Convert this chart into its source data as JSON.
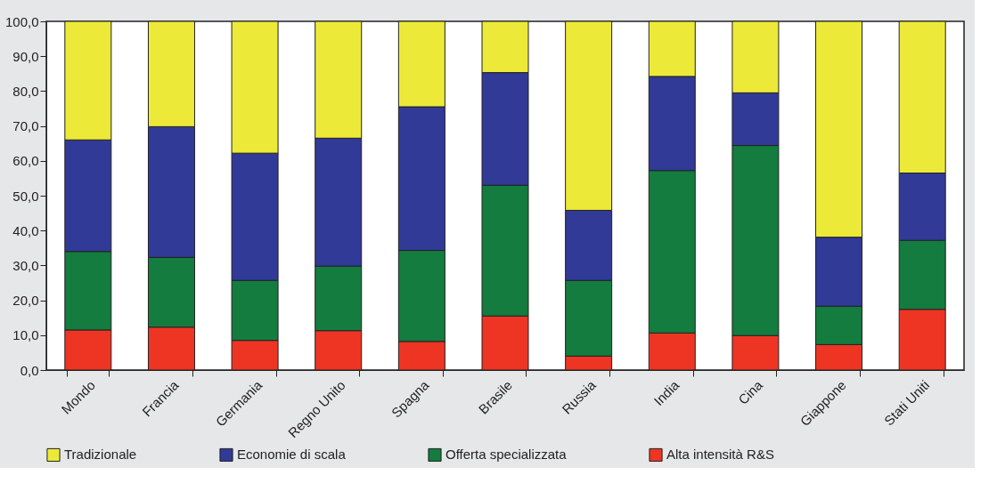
{
  "chart_data": {
    "type": "bar",
    "stacked": true,
    "categories": [
      "Mondo",
      "Francia",
      "Germania",
      "Regno Unito",
      "Spagna",
      "Brasile",
      "Russia",
      "India",
      "Cina",
      "Giappone",
      "Stati Uniti"
    ],
    "series": [
      {
        "name": "Alta intensità R&S",
        "color": "#ee3524",
        "values": [
          11.5,
          12.3,
          8.5,
          11.3,
          8.2,
          15.5,
          4.0,
          10.6,
          9.9,
          7.3,
          17.4
        ]
      },
      {
        "name": "Offerta specializzata",
        "color": "#137c3e",
        "values": [
          22.5,
          20.0,
          17.2,
          18.5,
          26.1,
          37.5,
          21.7,
          46.6,
          54.5,
          11.0,
          19.8
        ]
      },
      {
        "name": "Economie di scala",
        "color": "#313a96",
        "values": [
          32.0,
          37.5,
          36.5,
          36.7,
          41.2,
          32.3,
          20.1,
          27.0,
          15.1,
          19.8,
          19.3
        ]
      },
      {
        "name": "Tradizionale",
        "color": "#ede939",
        "values": [
          34.0,
          30.2,
          37.8,
          33.5,
          24.5,
          14.7,
          54.2,
          15.8,
          20.5,
          61.9,
          43.5
        ]
      }
    ],
    "ylim": [
      0,
      100
    ],
    "yticks": [
      {
        "value": 0,
        "label": "0,0"
      },
      {
        "value": 10,
        "label": "10,0"
      },
      {
        "value": 20,
        "label": "20,0"
      },
      {
        "value": 30,
        "label": "30,0"
      },
      {
        "value": 40,
        "label": "40,0"
      },
      {
        "value": 50,
        "label": "50,0"
      },
      {
        "value": 60,
        "label": "60,0"
      },
      {
        "value": 70,
        "label": "70,0"
      },
      {
        "value": 80,
        "label": "80,0"
      },
      {
        "value": 90,
        "label": "90,0"
      },
      {
        "value": 100,
        "label": "100,0"
      }
    ],
    "grid": false,
    "legend": "bottom"
  }
}
